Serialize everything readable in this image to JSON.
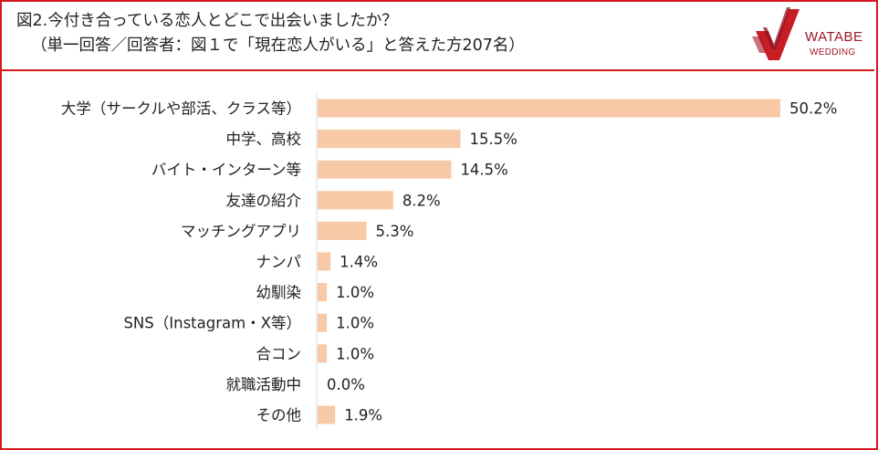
{
  "title": {
    "line1": "図2.今付き合っている恋人とどこで出会いましたか？",
    "line2": "（単一回答／回答者：図１で「現在恋人がいる」と答えた方207名）"
  },
  "brand": {
    "name": "WATABE",
    "sub": "WEDDING",
    "color": "#a01526"
  },
  "chart_data": {
    "type": "bar",
    "orientation": "horizontal",
    "categories": [
      "大学（サークルや部活、クラス等）",
      "中学、高校",
      "バイト・インターン等",
      "友達の紹介",
      "マッチングアプリ",
      "ナンパ",
      "幼馴染",
      "SNS（Instagram・X等）",
      "合コン",
      "就職活動中",
      "その他"
    ],
    "values": [
      50.2,
      15.5,
      14.5,
      8.2,
      5.3,
      1.4,
      1.0,
      1.0,
      1.0,
      0.0,
      1.9
    ],
    "labels": [
      "50.2%",
      "15.5%",
      "14.5%",
      "8.2%",
      "5.3%",
      "1.4%",
      "1.0%",
      "1.0%",
      "1.0%",
      "0.0%",
      "1.9%"
    ],
    "xlim": [
      0,
      50.2
    ],
    "bar_color": "#f8c9a6",
    "axis_color": "#d9d9d9",
    "grid": false,
    "legend": "none"
  }
}
